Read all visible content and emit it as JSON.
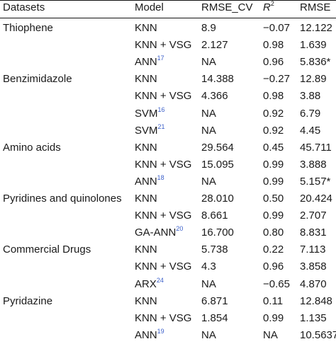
{
  "header": {
    "datasets": "Datasets",
    "model": "Model",
    "rmse_cv": "RMSE_CV",
    "r2_base": "R",
    "r2_sup": "2",
    "rmse": "RMSE"
  },
  "rows": [
    {
      "dataset": "Thiophene",
      "model": "KNN",
      "model_sup": "",
      "rmse_cv": "8.9",
      "r2": "−0.07",
      "rmse": "12.122"
    },
    {
      "dataset": "",
      "model": "KNN + VSG",
      "model_sup": "",
      "rmse_cv": "2.127",
      "r2": "0.98",
      "rmse": "1.639"
    },
    {
      "dataset": "",
      "model": "ANN",
      "model_sup": "17",
      "rmse_cv": "NA",
      "r2": "0.96",
      "rmse": "5.836*"
    },
    {
      "dataset": "Benzimidazole",
      "model": "KNN",
      "model_sup": "",
      "rmse_cv": "14.388",
      "r2": "−0.27",
      "rmse": "12.89"
    },
    {
      "dataset": "",
      "model": "KNN + VSG",
      "model_sup": "",
      "rmse_cv": "4.366",
      "r2": "0.98",
      "rmse": "3.88"
    },
    {
      "dataset": "",
      "model": "SVM",
      "model_sup": "16",
      "rmse_cv": "NA",
      "r2": "0.92",
      "rmse": "6.79"
    },
    {
      "dataset": "",
      "model": "SVM",
      "model_sup": "21",
      "rmse_cv": "NA",
      "r2": "0.92",
      "rmse": "4.45"
    },
    {
      "dataset": "Amino acids",
      "model": "KNN",
      "model_sup": "",
      "rmse_cv": "29.564",
      "r2": "0.45",
      "rmse": "45.711"
    },
    {
      "dataset": "",
      "model": "KNN + VSG",
      "model_sup": "",
      "rmse_cv": "15.095",
      "r2": "0.99",
      "rmse": "3.888"
    },
    {
      "dataset": "",
      "model": "ANN",
      "model_sup": "18",
      "rmse_cv": "NA",
      "r2": "0.99",
      "rmse": "5.157*"
    },
    {
      "dataset": "Pyridines and quinolones",
      "model": "KNN",
      "model_sup": "",
      "rmse_cv": "28.010",
      "r2": "0.50",
      "rmse": "20.424"
    },
    {
      "dataset": "",
      "model": "KNN + VSG",
      "model_sup": "",
      "rmse_cv": "8.661",
      "r2": "0.99",
      "rmse": "2.707"
    },
    {
      "dataset": "",
      "model": "GA-ANN",
      "model_sup": "20",
      "rmse_cv": "16.700",
      "r2": "0.80",
      "rmse": "8.831"
    },
    {
      "dataset": "Commercial Drugs",
      "model": "KNN",
      "model_sup": "",
      "rmse_cv": "5.738",
      "r2": "0.22",
      "rmse": "7.113"
    },
    {
      "dataset": "",
      "model": "KNN + VSG",
      "model_sup": "",
      "rmse_cv": "4.3",
      "r2": "0.96",
      "rmse": "3.858"
    },
    {
      "dataset": "",
      "model": "ARX",
      "model_sup": "24",
      "rmse_cv": "NA",
      "r2": "−0.65",
      "rmse": "4.870"
    },
    {
      "dataset": "Pyridazine",
      "model": "KNN",
      "model_sup": "",
      "rmse_cv": "6.871",
      "r2": "0.11",
      "rmse": "12.848"
    },
    {
      "dataset": "",
      "model": "KNN + VSG",
      "model_sup": "",
      "rmse_cv": "1.854",
      "r2": "0.99",
      "rmse": "1.135"
    },
    {
      "dataset": "",
      "model": "ANN",
      "model_sup": "19",
      "rmse_cv": "NA",
      "r2": "NA",
      "rmse": "10.5637"
    }
  ]
}
